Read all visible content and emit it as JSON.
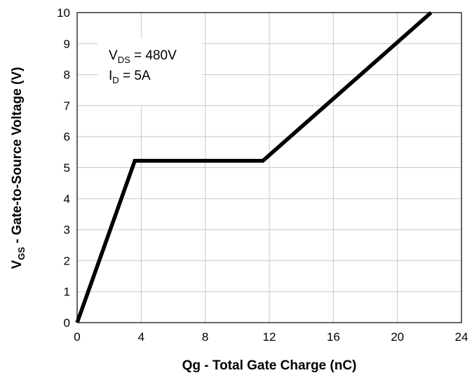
{
  "chart_data": {
    "type": "line",
    "xlabel": "Qg - Total Gate Charge (nC)",
    "ylabel": {
      "main": "V",
      "sub": "GS",
      "rest": " - Gate-to-Source Voltage (V)"
    },
    "xlim": [
      0,
      24
    ],
    "ylim": [
      0,
      10
    ],
    "x_ticks": [
      0,
      4,
      8,
      12,
      16,
      20,
      24
    ],
    "y_ticks": [
      0,
      1,
      2,
      3,
      4,
      5,
      6,
      7,
      8,
      9,
      10
    ],
    "grid": true,
    "series": [
      {
        "x": [
          0,
          3.6,
          11.6,
          22.1
        ],
        "y": [
          0,
          5.22,
          5.22,
          10
        ],
        "color": "#000000"
      }
    ],
    "annotations": [
      {
        "main": "V",
        "sub": "DS",
        "rest": " = 480V"
      },
      {
        "main": "I",
        "sub": "D",
        "rest": " = 5A"
      }
    ]
  }
}
